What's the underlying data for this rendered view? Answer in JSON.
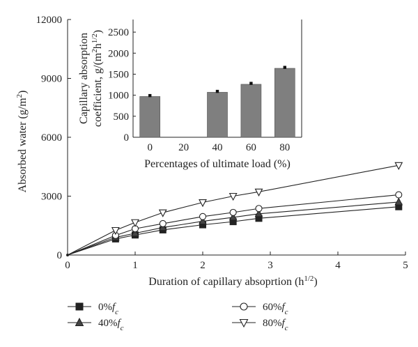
{
  "chart_data": [
    {
      "type": "line",
      "xlabel": "Duration of capillary absoprtion (h",
      "xlabel_sup": "1/2",
      "xlabel_end": ")",
      "ylabel": "Absorbed water (g/m",
      "ylabel_sup": "2",
      "ylabel_end": ")",
      "xlim": [
        0,
        5
      ],
      "ylim": [
        0,
        12000
      ],
      "xticks": [
        0,
        1,
        2,
        3,
        4,
        5
      ],
      "yticks": [
        0,
        3000,
        6000,
        9000,
        12000
      ],
      "grid": false,
      "legend_position": "bottom",
      "x": [
        0,
        0.71,
        1.0,
        1.41,
        2.0,
        2.45,
        2.83,
        4.9
      ],
      "series": [
        {
          "name": "0%",
          "name_sub": "c",
          "marker": "square",
          "values": [
            0,
            820,
            1020,
            1280,
            1540,
            1700,
            1870,
            2460
          ]
        },
        {
          "name": "40%",
          "name_sub": "c",
          "marker": "triangle-up",
          "values": [
            0,
            900,
            1110,
            1400,
            1720,
            1920,
            2100,
            2700
          ]
        },
        {
          "name": "60%",
          "name_sub": "c",
          "marker": "circle-open",
          "values": [
            0,
            1000,
            1340,
            1600,
            1960,
            2170,
            2370,
            3070
          ]
        },
        {
          "name": "80%",
          "name_sub": "c",
          "marker": "triangle-down",
          "values": [
            0,
            1260,
            1660,
            2160,
            2680,
            3000,
            3220,
            4570
          ]
        }
      ]
    },
    {
      "type": "bar",
      "inset": true,
      "ylabel_line1": "Capillary absorption",
      "ylabel_line2": "coefficient, g/(m",
      "ylabel_sup": "2",
      "ylabel_mid": "h",
      "ylabel_sup2": "1/2",
      "ylabel_end": ")",
      "xlabel": "Percentages of ultimate load (%)",
      "categories": [
        "0",
        "20",
        "40",
        "60",
        "80"
      ],
      "values": [
        970,
        null,
        1070,
        1260,
        1640
      ],
      "ylim": [
        0,
        2800
      ],
      "yticks": [
        0,
        500,
        1000,
        1500,
        2000,
        2500
      ],
      "bar_color": "#7f7f7f"
    }
  ],
  "legend_symbol": "f"
}
